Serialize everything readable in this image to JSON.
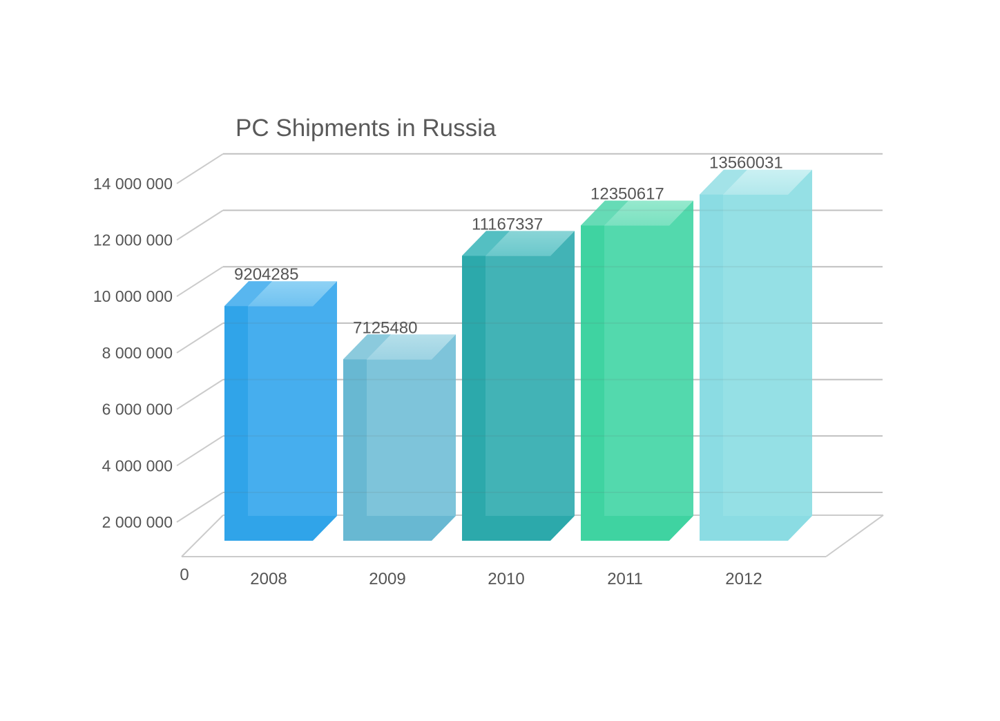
{
  "chart_data": {
    "type": "bar",
    "title": "PC Shipments in Russia",
    "categories": [
      "2008",
      "2009",
      "2010",
      "2011",
      "2012"
    ],
    "values": [
      9204285,
      7125480,
      11167337,
      12350617,
      13560031
    ],
    "value_labels": [
      "9204285",
      "7125480",
      "11167337",
      "12350617",
      "13560031"
    ],
    "origin_label": "0",
    "ytick_labels": [
      "2 000 000",
      "4 000 000",
      "6 000 000",
      "8 000 000",
      "10 000 000",
      "12 000 000",
      "14 000 000"
    ],
    "ylim": [
      0,
      14000000
    ],
    "ytick_step": 2000000,
    "grid": true,
    "legend_position": "none",
    "projection": "oblique-3d",
    "bar_colors": [
      {
        "front": "#46AEEE",
        "left_band": "#30A4E9",
        "top_back": "#8FD2F5",
        "top_front": "#70C2F1",
        "top_band": "#58B6EF"
      },
      {
        "front": "#7EC4DA",
        "left_band": "#68B8D2",
        "top_back": "#B5DFEA",
        "top_front": "#9DD3E3",
        "top_band": "#8BCADD"
      },
      {
        "front": "#42B3B6",
        "left_band": "#2CA9AB",
        "top_back": "#8AD5D7",
        "top_front": "#6AC8CB",
        "top_band": "#54BFC2"
      },
      {
        "front": "#53D9AD",
        "left_band": "#3FD3A1",
        "top_back": "#96E9CE",
        "top_front": "#7AE1C0",
        "top_band": "#66DBB6"
      },
      {
        "front": "#95E0E5",
        "left_band": "#8BDCE3",
        "top_back": "#CBF1F3",
        "top_front": "#B2E8EC",
        "top_band": "#A3E3E8"
      }
    ],
    "gridline_color": "#CBCBCB",
    "axis_label_color": "#555555",
    "value_label_color": "#555555",
    "title_color": "#595959",
    "background_color": "#FFFFFF"
  }
}
